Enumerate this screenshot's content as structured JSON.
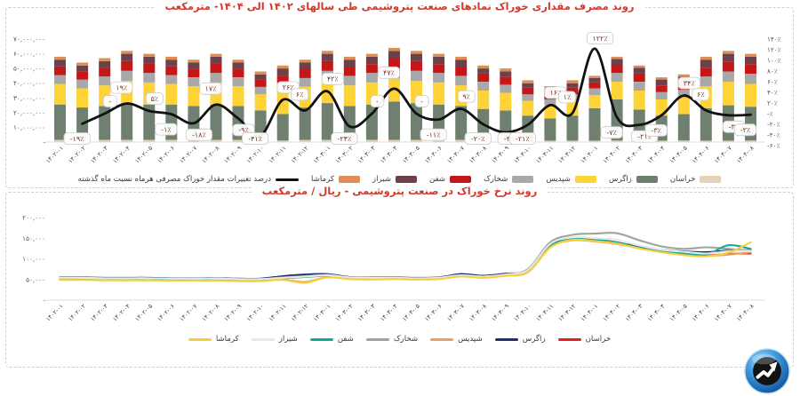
{
  "page": {
    "background": "#ffffff"
  },
  "brand_logo": {
    "name": "market-arrow-logo",
    "outer_color": "#2f8fd6",
    "inner_color": "#121212",
    "arrow_color": "#ffffff"
  },
  "chart_data": [
    {
      "type": "bar",
      "stacked": true,
      "grid": false,
      "legend_position": "bottom",
      "title": "روند مصرف مقداری خوراک نمادهای صنعت پتروشیمی طی سالهای ۱۴۰۲ الی ۱۴۰۴- مترمکعب",
      "title_color": "#d03a2c",
      "unit": "مترمکعب",
      "categories": [
        "۱۴۰۲-۰۱",
        "۱۴۰۲-۰۲",
        "۱۴۰۲-۰۳",
        "۱۴۰۲-۰۴",
        "۱۴۰۲-۰۵",
        "۱۴۰۲-۰۶",
        "۱۴۰۲-۰۷",
        "۱۴۰۲-۰۸",
        "۱۴۰۲-۰۹",
        "۱۴۰۲-۱۰",
        "۱۴۰۲-۱۱",
        "۱۴۰۲-۱۲",
        "۱۴۰۳-۰۱",
        "۱۴۰۳-۰۲",
        "۱۴۰۳-۰۳",
        "۱۴۰۳-۰۴",
        "۱۴۰۳-۰۵",
        "۱۴۰۳-۰۶",
        "۱۴۰۳-۰۷",
        "۱۴۰۳-۰۸",
        "۱۴۰۳-۰۹",
        "۱۴۰۳-۱۰",
        "۱۴۰۳-۱۱",
        "۱۴۰۳-۱۲",
        "۱۴۰۴-۰۱",
        "۱۴۰۴-۰۲",
        "۱۴۰۴-۰۳",
        "۱۴۰۴-۰۴",
        "۱۴۰۴-۰۵",
        "۱۴۰۴-۰۶",
        "۱۴۰۴-۰۷",
        "۱۴۰۴-۰۸"
      ],
      "left_axis": {
        "min": 0,
        "max": 70000000,
        "unit_scale": "million_m3",
        "tick_values": [
          70,
          60,
          50,
          40,
          30,
          20,
          10,
          0
        ],
        "tick_labels": [
          "۷۰,۰۰۰,۰۰۰",
          "۶۰,۰۰۰,۰۰۰",
          "۵۰,۰۰۰,۰۰۰",
          "۴۰,۰۰۰,۰۰۰",
          "۳۰,۰۰۰,۰۰۰",
          "۲۰,۰۰۰,۰۰۰",
          "۱۰,۰۰۰,۰۰۰",
          "-"
        ]
      },
      "right_axis": {
        "min": -60,
        "max": 140,
        "unit": "percent",
        "tick_values": [
          140,
          120,
          100,
          80,
          60,
          40,
          20,
          0,
          -20,
          -40,
          -60
        ],
        "tick_labels": [
          "۱۴۰٪",
          "۱۲۰٪",
          "۱۰۰٪",
          "۸۰٪",
          "۶۰٪",
          "۴۰٪",
          "۲۰٪",
          "-٪",
          "-۲۰٪",
          "-۴۰٪",
          "-۶۰٪"
        ]
      },
      "series": [
        {
          "key": "khorasan",
          "name": "خراسان",
          "color": "#e3d2b6",
          "values": [
            1.5,
            1.5,
            1.5,
            1.5,
            1.5,
            1.5,
            1.5,
            1.5,
            1.5,
            1.5,
            1,
            1.5,
            1.5,
            1.5,
            1.5,
            1.5,
            1.5,
            1.5,
            1.5,
            1.5,
            1.5,
            1,
            1,
            1,
            1,
            1,
            1,
            1,
            1,
            1,
            1,
            1
          ]
        },
        {
          "key": "zagros",
          "name": "زاگرس",
          "color": "#6f8070",
          "values": [
            24,
            22,
            23,
            25,
            24,
            24,
            23,
            24,
            23,
            20,
            18,
            22,
            25,
            23,
            24,
            26,
            25,
            24,
            23,
            21,
            20,
            17,
            15,
            17,
            22,
            28,
            21,
            17,
            18,
            22,
            24,
            23
          ]
        },
        {
          "key": "shepdis",
          "name": "شپدیس",
          "color": "#fdd335",
          "values": [
            14,
            13,
            14,
            15,
            15,
            14,
            13.5,
            15,
            13.5,
            11,
            16,
            14,
            15,
            14,
            15,
            15.5,
            15,
            15,
            14,
            12.5,
            12,
            10,
            9,
            10,
            9,
            12,
            13,
            11,
            11.5,
            15,
            16,
            15.5
          ]
        },
        {
          "key": "shakharak",
          "name": "شخارک",
          "color": "#a8a8a8",
          "values": [
            6,
            6,
            6,
            7,
            6.5,
            6,
            6,
            6.5,
            6,
            5,
            5,
            6,
            7,
            6.5,
            6.5,
            7,
            7,
            6.5,
            6.5,
            6,
            5.5,
            4.5,
            4,
            4.5,
            4.5,
            6,
            6,
            5,
            5,
            6.5,
            7,
            7
          ]
        },
        {
          "key": "shafan",
          "name": "شفن",
          "color": "#c51718",
          "values": [
            6,
            5.5,
            6,
            6.5,
            6.5,
            6,
            6,
            6.5,
            6,
            5,
            5,
            6,
            6.5,
            6,
            6,
            7,
            6.5,
            6,
            6,
            5.5,
            5.5,
            4.5,
            4,
            4.5,
            4,
            5.5,
            5.5,
            4.5,
            5,
            6,
            6.5,
            6.5
          ]
        },
        {
          "key": "shiraz",
          "name": "شیراز",
          "color": "#6d4149",
          "values": [
            4.5,
            4,
            4.5,
            5,
            4.5,
            4.5,
            4,
            4.5,
            4,
            3.5,
            5,
            4.5,
            5,
            5,
            5,
            5,
            5,
            5,
            5,
            3.5,
            3.5,
            3,
            3,
            3,
            3,
            4,
            4,
            4,
            4,
            5.5,
            5.5,
            5
          ]
        },
        {
          "key": "kermasha",
          "name": "کرماشا",
          "color": "#dd8e54",
          "values": [
            2,
            2,
            2,
            2,
            2,
            2,
            2,
            2,
            2,
            2,
            2,
            2,
            2,
            2,
            2,
            2,
            2,
            2,
            2,
            2,
            2,
            2,
            2,
            2,
            1.5,
            1.5,
            1.5,
            1.5,
            1.5,
            2,
            2,
            2
          ]
        }
      ],
      "line_series": {
        "key": "mom-change",
        "name": "درصد تغییرات مقدار خوراک مصرفی هرماه نسبت ماه گذشته",
        "color": "#111111",
        "values": [
          null,
          -19,
          0,
          19,
          5,
          -1,
          -18,
          17,
          -9,
          -41,
          26,
          6,
          42,
          -24,
          0,
          47,
          0,
          -11,
          9,
          -20,
          -35,
          -21,
          16,
          1,
          122,
          -7,
          -21,
          -3,
          34,
          6,
          -3,
          -2
        ],
        "labels": [
          "",
          "-۱۹٪",
          "-",
          "۱۹٪",
          "۵٪",
          "-۱٪",
          "-۱۸٪",
          "۱۷٪",
          "-۹٪",
          "-۴۱٪",
          "۲۶٪",
          "۶٪",
          "۴۲٪",
          "-۲۴٪",
          "-",
          "۴۷٪",
          "-",
          "-۱۱٪",
          "۹٪",
          "-۲۰٪",
          "-۳۵٪",
          "-۲۱٪",
          "۱۶٪",
          "۱٪",
          "۱۲۲٪",
          "-۷٪",
          "-۲۱٪",
          "-۳٪",
          "۳۴٪",
          "۶٪",
          "-۳٪",
          "-۲٪"
        ]
      }
    },
    {
      "type": "line",
      "grid": false,
      "legend_position": "bottom",
      "title": "روند نرخ خوراک در صنعت پتروشیمی - ریال / مترمکعب",
      "title_color": "#d03a2c",
      "unit": "ریال / مترمکعب",
      "categories": [
        "۱۴۰۲-۰۱",
        "۱۴۰۲-۰۲",
        "۱۴۰۲-۰۳",
        "۱۴۰۲-۰۴",
        "۱۴۰۲-۰۵",
        "۱۴۰۲-۰۶",
        "۱۴۰۲-۰۷",
        "۱۴۰۲-۰۸",
        "۱۴۰۲-۰۹",
        "۱۴۰۲-۱۰",
        "۱۴۰۲-۱۱",
        "۱۴۰۲-۱۲",
        "۱۴۰۳-۰۱",
        "۱۴۰۳-۰۲",
        "۱۴۰۳-۰۳",
        "۱۴۰۳-۰۴",
        "۱۴۰۳-۰۵",
        "۱۴۰۳-۰۶",
        "۱۴۰۳-۰۷",
        "۱۴۰۳-۰۸",
        "۱۴۰۳-۰۹",
        "۱۴۰۳-۱۰",
        "۱۴۰۳-۱۱",
        "۱۴۰۳-۱۲",
        "۱۴۰۴-۰۱",
        "۱۴۰۴-۰۲",
        "۱۴۰۴-۰۳",
        "۱۴۰۴-۰۴",
        "۱۴۰۴-۰۵",
        "۱۴۰۴-۰۶",
        "۱۴۰۴-۰۷",
        "۱۴۰۴-۰۸"
      ],
      "y_axis": {
        "min": 0,
        "max": 200000,
        "tick_values": [
          200000,
          150000,
          100000,
          50000,
          0
        ],
        "tick_labels": [
          "۲۰۰,۰۰۰",
          "۱۵۰,۰۰۰",
          "۱۰۰,۰۰۰",
          "۵۰,۰۰۰",
          "-"
        ]
      },
      "series": [
        {
          "key": "khorasan",
          "name": "خراسان",
          "color": "#e0201f",
          "values": [
            52000,
            52000,
            51000,
            51000,
            51000,
            51000,
            50000,
            50000,
            50000,
            50000,
            54000,
            57000,
            60000,
            54000,
            53000,
            54000,
            53000,
            54000,
            61000,
            57000,
            62000,
            70000,
            130000,
            147000,
            146000,
            140000,
            128000,
            118000,
            112000,
            108000,
            112000,
            113000
          ]
        },
        {
          "key": "zagros",
          "name": "زاگرس",
          "color": "#1f2d7b",
          "values": [
            55000,
            55000,
            54000,
            54000,
            54000,
            53000,
            53000,
            53000,
            52000,
            52000,
            58000,
            62000,
            63000,
            56000,
            55000,
            55000,
            54000,
            55000,
            63000,
            59000,
            64000,
            72000,
            132000,
            148000,
            144000,
            138000,
            130000,
            122000,
            118000,
            116000,
            120000,
            121000
          ]
        },
        {
          "key": "shepdis",
          "name": "شپدیس",
          "color": "#ef9e63",
          "values": [
            50000,
            50000,
            49000,
            49000,
            49000,
            48000,
            48000,
            48000,
            47000,
            47000,
            50000,
            44000,
            56000,
            52000,
            51000,
            52000,
            51000,
            52000,
            58000,
            55000,
            60000,
            68000,
            128000,
            145000,
            142000,
            136000,
            126000,
            117000,
            110000,
            107000,
            110000,
            116000
          ]
        },
        {
          "key": "shakharak",
          "name": "شخارک",
          "color": "#9aa59c",
          "values": [
            54000,
            54000,
            53000,
            53000,
            53000,
            52000,
            52000,
            52000,
            51000,
            51000,
            55000,
            58000,
            61000,
            55000,
            54000,
            54000,
            53000,
            54000,
            60000,
            57000,
            62000,
            75000,
            140000,
            158000,
            161000,
            162000,
            145000,
            130000,
            124000,
            128000,
            124000,
            120000
          ]
        },
        {
          "key": "shafan",
          "name": "شفن",
          "color": "#18a79a",
          "values": [
            53000,
            53000,
            52000,
            52000,
            52000,
            51000,
            51000,
            51000,
            50000,
            50000,
            53000,
            56000,
            59000,
            54000,
            53000,
            53000,
            52000,
            53000,
            59000,
            56000,
            61000,
            71000,
            131000,
            148000,
            146000,
            140000,
            127000,
            119000,
            113000,
            110000,
            133000,
            124000
          ]
        },
        {
          "key": "shiraz",
          "name": "شیراز",
          "color": "#e9e9df",
          "values": [
            54000,
            54000,
            53000,
            53000,
            53000,
            52000,
            52000,
            52000,
            51000,
            51000,
            54000,
            57000,
            60000,
            55000,
            54000,
            54000,
            53000,
            54000,
            60000,
            57000,
            62000,
            73000,
            136000,
            152000,
            150000,
            146000,
            132000,
            122000,
            117000,
            113000,
            118000,
            119000
          ]
        },
        {
          "key": "kermasha",
          "name": "کرماشا",
          "color": "#f6cf3f",
          "values": [
            49000,
            49000,
            48000,
            48000,
            48000,
            47000,
            47000,
            47000,
            46000,
            46000,
            49000,
            42000,
            55000,
            51000,
            50000,
            51000,
            50000,
            51000,
            57000,
            54000,
            59000,
            67000,
            127000,
            146000,
            143000,
            137000,
            125000,
            116000,
            109000,
            106000,
            115000,
            140000
          ]
        }
      ]
    }
  ]
}
